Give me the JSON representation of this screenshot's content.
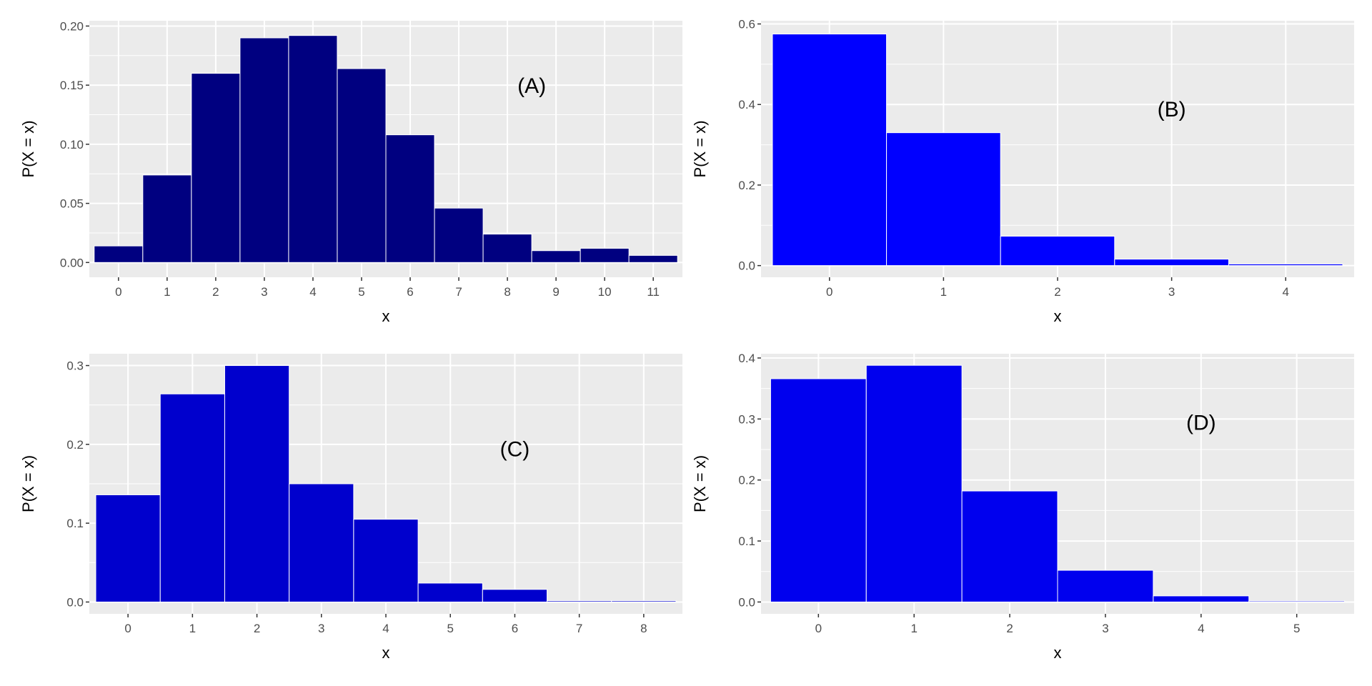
{
  "chart_data": [
    {
      "type": "bar",
      "panel": "A",
      "annotation": {
        "text": "(A)",
        "x": 8.5,
        "y": 0.15
      },
      "xlabel": "x",
      "ylabel": "P(X = x)",
      "categories": [
        0,
        1,
        2,
        3,
        4,
        5,
        6,
        7,
        8,
        9,
        10,
        11
      ],
      "values": [
        0.014,
        0.074,
        0.16,
        0.19,
        0.192,
        0.164,
        0.108,
        0.046,
        0.024,
        0.01,
        0.012,
        0.006
      ],
      "ylim": [
        -0.0125,
        0.2045
      ],
      "yticks": [
        0.0,
        0.05,
        0.1,
        0.15,
        0.2
      ],
      "ytick_labels": [
        "0.00",
        "0.05",
        "0.10",
        "0.15",
        "0.20"
      ],
      "xtick_labels": [
        "0",
        "1",
        "2",
        "3",
        "4",
        "5",
        "6",
        "7",
        "8",
        "9",
        "10",
        "11"
      ],
      "color": "#000080",
      "grid": true
    },
    {
      "type": "bar",
      "panel": "B",
      "annotation": {
        "text": "(B)",
        "x": 3,
        "y": 0.39
      },
      "xlabel": "x",
      "ylabel": "P(X = x)",
      "categories": [
        0,
        1,
        2,
        3,
        4
      ],
      "values": [
        0.575,
        0.33,
        0.073,
        0.016,
        0.004
      ],
      "ylim": [
        -0.029,
        0.608
      ],
      "yticks": [
        0.0,
        0.2,
        0.4,
        0.6
      ],
      "ytick_labels": [
        "0.0",
        "0.2",
        "0.4",
        "0.6"
      ],
      "xtick_labels": [
        "0",
        "1",
        "2",
        "3",
        "4"
      ],
      "color": "#0000FF",
      "grid": true
    },
    {
      "type": "bar",
      "panel": "C",
      "annotation": {
        "text": "(C)",
        "x": 6,
        "y": 0.195
      },
      "xlabel": "x",
      "ylabel": "P(X = x)",
      "categories": [
        0,
        1,
        2,
        3,
        4,
        5,
        6,
        7,
        8
      ],
      "values": [
        0.136,
        0.264,
        0.3,
        0.15,
        0.105,
        0.024,
        0.016,
        0.0015,
        0.0015
      ],
      "ylim": [
        -0.015,
        0.315
      ],
      "yticks": [
        0.0,
        0.1,
        0.2,
        0.3
      ],
      "ytick_labels": [
        "0.0",
        "0.1",
        "0.2",
        "0.3"
      ],
      "xtick_labels": [
        "0",
        "1",
        "2",
        "3",
        "4",
        "5",
        "6",
        "7",
        "8"
      ],
      "color": "#0000CD",
      "grid": true
    },
    {
      "type": "bar",
      "panel": "D",
      "annotation": {
        "text": "(D)",
        "x": 4,
        "y": 0.295
      },
      "xlabel": "x",
      "ylabel": "P(X = x)",
      "categories": [
        0,
        1,
        2,
        3,
        4,
        5
      ],
      "values": [
        0.366,
        0.388,
        0.182,
        0.052,
        0.01,
        0.0016
      ],
      "ylim": [
        -0.0194,
        0.407
      ],
      "yticks": [
        0.0,
        0.1,
        0.2,
        0.3,
        0.4
      ],
      "ytick_labels": [
        "0.0",
        "0.1",
        "0.2",
        "0.3",
        "0.4"
      ],
      "xtick_labels": [
        "0",
        "1",
        "2",
        "3",
        "4",
        "5"
      ],
      "color": "#0000EE",
      "grid": true
    }
  ]
}
